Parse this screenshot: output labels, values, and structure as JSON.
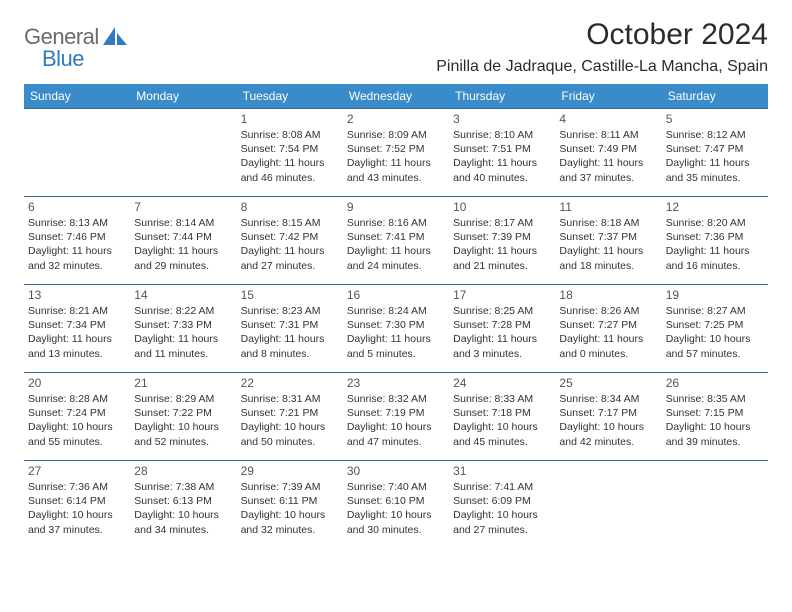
{
  "logo": {
    "text1": "General",
    "text2": "Blue",
    "accent_color": "#2f7bbf",
    "grey_color": "#6b6b6b"
  },
  "title": "October 2024",
  "location": "Pinilla de Jadraque, Castille-La Mancha, Spain",
  "colors": {
    "header_bg": "#3a8bc9",
    "header_text": "#ffffff",
    "cell_border": "#3a6ea5",
    "body_text": "#333333"
  },
  "day_headers": [
    "Sunday",
    "Monday",
    "Tuesday",
    "Wednesday",
    "Thursday",
    "Friday",
    "Saturday"
  ],
  "weeks": [
    [
      null,
      null,
      {
        "n": "1",
        "sr": "Sunrise: 8:08 AM",
        "ss": "Sunset: 7:54 PM",
        "dl1": "Daylight: 11 hours",
        "dl2": "and 46 minutes."
      },
      {
        "n": "2",
        "sr": "Sunrise: 8:09 AM",
        "ss": "Sunset: 7:52 PM",
        "dl1": "Daylight: 11 hours",
        "dl2": "and 43 minutes."
      },
      {
        "n": "3",
        "sr": "Sunrise: 8:10 AM",
        "ss": "Sunset: 7:51 PM",
        "dl1": "Daylight: 11 hours",
        "dl2": "and 40 minutes."
      },
      {
        "n": "4",
        "sr": "Sunrise: 8:11 AM",
        "ss": "Sunset: 7:49 PM",
        "dl1": "Daylight: 11 hours",
        "dl2": "and 37 minutes."
      },
      {
        "n": "5",
        "sr": "Sunrise: 8:12 AM",
        "ss": "Sunset: 7:47 PM",
        "dl1": "Daylight: 11 hours",
        "dl2": "and 35 minutes."
      }
    ],
    [
      {
        "n": "6",
        "sr": "Sunrise: 8:13 AM",
        "ss": "Sunset: 7:46 PM",
        "dl1": "Daylight: 11 hours",
        "dl2": "and 32 minutes."
      },
      {
        "n": "7",
        "sr": "Sunrise: 8:14 AM",
        "ss": "Sunset: 7:44 PM",
        "dl1": "Daylight: 11 hours",
        "dl2": "and 29 minutes."
      },
      {
        "n": "8",
        "sr": "Sunrise: 8:15 AM",
        "ss": "Sunset: 7:42 PM",
        "dl1": "Daylight: 11 hours",
        "dl2": "and 27 minutes."
      },
      {
        "n": "9",
        "sr": "Sunrise: 8:16 AM",
        "ss": "Sunset: 7:41 PM",
        "dl1": "Daylight: 11 hours",
        "dl2": "and 24 minutes."
      },
      {
        "n": "10",
        "sr": "Sunrise: 8:17 AM",
        "ss": "Sunset: 7:39 PM",
        "dl1": "Daylight: 11 hours",
        "dl2": "and 21 minutes."
      },
      {
        "n": "11",
        "sr": "Sunrise: 8:18 AM",
        "ss": "Sunset: 7:37 PM",
        "dl1": "Daylight: 11 hours",
        "dl2": "and 18 minutes."
      },
      {
        "n": "12",
        "sr": "Sunrise: 8:20 AM",
        "ss": "Sunset: 7:36 PM",
        "dl1": "Daylight: 11 hours",
        "dl2": "and 16 minutes."
      }
    ],
    [
      {
        "n": "13",
        "sr": "Sunrise: 8:21 AM",
        "ss": "Sunset: 7:34 PM",
        "dl1": "Daylight: 11 hours",
        "dl2": "and 13 minutes."
      },
      {
        "n": "14",
        "sr": "Sunrise: 8:22 AM",
        "ss": "Sunset: 7:33 PM",
        "dl1": "Daylight: 11 hours",
        "dl2": "and 11 minutes."
      },
      {
        "n": "15",
        "sr": "Sunrise: 8:23 AM",
        "ss": "Sunset: 7:31 PM",
        "dl1": "Daylight: 11 hours",
        "dl2": "and 8 minutes."
      },
      {
        "n": "16",
        "sr": "Sunrise: 8:24 AM",
        "ss": "Sunset: 7:30 PM",
        "dl1": "Daylight: 11 hours",
        "dl2": "and 5 minutes."
      },
      {
        "n": "17",
        "sr": "Sunrise: 8:25 AM",
        "ss": "Sunset: 7:28 PM",
        "dl1": "Daylight: 11 hours",
        "dl2": "and 3 minutes."
      },
      {
        "n": "18",
        "sr": "Sunrise: 8:26 AM",
        "ss": "Sunset: 7:27 PM",
        "dl1": "Daylight: 11 hours",
        "dl2": "and 0 minutes."
      },
      {
        "n": "19",
        "sr": "Sunrise: 8:27 AM",
        "ss": "Sunset: 7:25 PM",
        "dl1": "Daylight: 10 hours",
        "dl2": "and 57 minutes."
      }
    ],
    [
      {
        "n": "20",
        "sr": "Sunrise: 8:28 AM",
        "ss": "Sunset: 7:24 PM",
        "dl1": "Daylight: 10 hours",
        "dl2": "and 55 minutes."
      },
      {
        "n": "21",
        "sr": "Sunrise: 8:29 AM",
        "ss": "Sunset: 7:22 PM",
        "dl1": "Daylight: 10 hours",
        "dl2": "and 52 minutes."
      },
      {
        "n": "22",
        "sr": "Sunrise: 8:31 AM",
        "ss": "Sunset: 7:21 PM",
        "dl1": "Daylight: 10 hours",
        "dl2": "and 50 minutes."
      },
      {
        "n": "23",
        "sr": "Sunrise: 8:32 AM",
        "ss": "Sunset: 7:19 PM",
        "dl1": "Daylight: 10 hours",
        "dl2": "and 47 minutes."
      },
      {
        "n": "24",
        "sr": "Sunrise: 8:33 AM",
        "ss": "Sunset: 7:18 PM",
        "dl1": "Daylight: 10 hours",
        "dl2": "and 45 minutes."
      },
      {
        "n": "25",
        "sr": "Sunrise: 8:34 AM",
        "ss": "Sunset: 7:17 PM",
        "dl1": "Daylight: 10 hours",
        "dl2": "and 42 minutes."
      },
      {
        "n": "26",
        "sr": "Sunrise: 8:35 AM",
        "ss": "Sunset: 7:15 PM",
        "dl1": "Daylight: 10 hours",
        "dl2": "and 39 minutes."
      }
    ],
    [
      {
        "n": "27",
        "sr": "Sunrise: 7:36 AM",
        "ss": "Sunset: 6:14 PM",
        "dl1": "Daylight: 10 hours",
        "dl2": "and 37 minutes."
      },
      {
        "n": "28",
        "sr": "Sunrise: 7:38 AM",
        "ss": "Sunset: 6:13 PM",
        "dl1": "Daylight: 10 hours",
        "dl2": "and 34 minutes."
      },
      {
        "n": "29",
        "sr": "Sunrise: 7:39 AM",
        "ss": "Sunset: 6:11 PM",
        "dl1": "Daylight: 10 hours",
        "dl2": "and 32 minutes."
      },
      {
        "n": "30",
        "sr": "Sunrise: 7:40 AM",
        "ss": "Sunset: 6:10 PM",
        "dl1": "Daylight: 10 hours",
        "dl2": "and 30 minutes."
      },
      {
        "n": "31",
        "sr": "Sunrise: 7:41 AM",
        "ss": "Sunset: 6:09 PM",
        "dl1": "Daylight: 10 hours",
        "dl2": "and 27 minutes."
      },
      null,
      null
    ]
  ]
}
